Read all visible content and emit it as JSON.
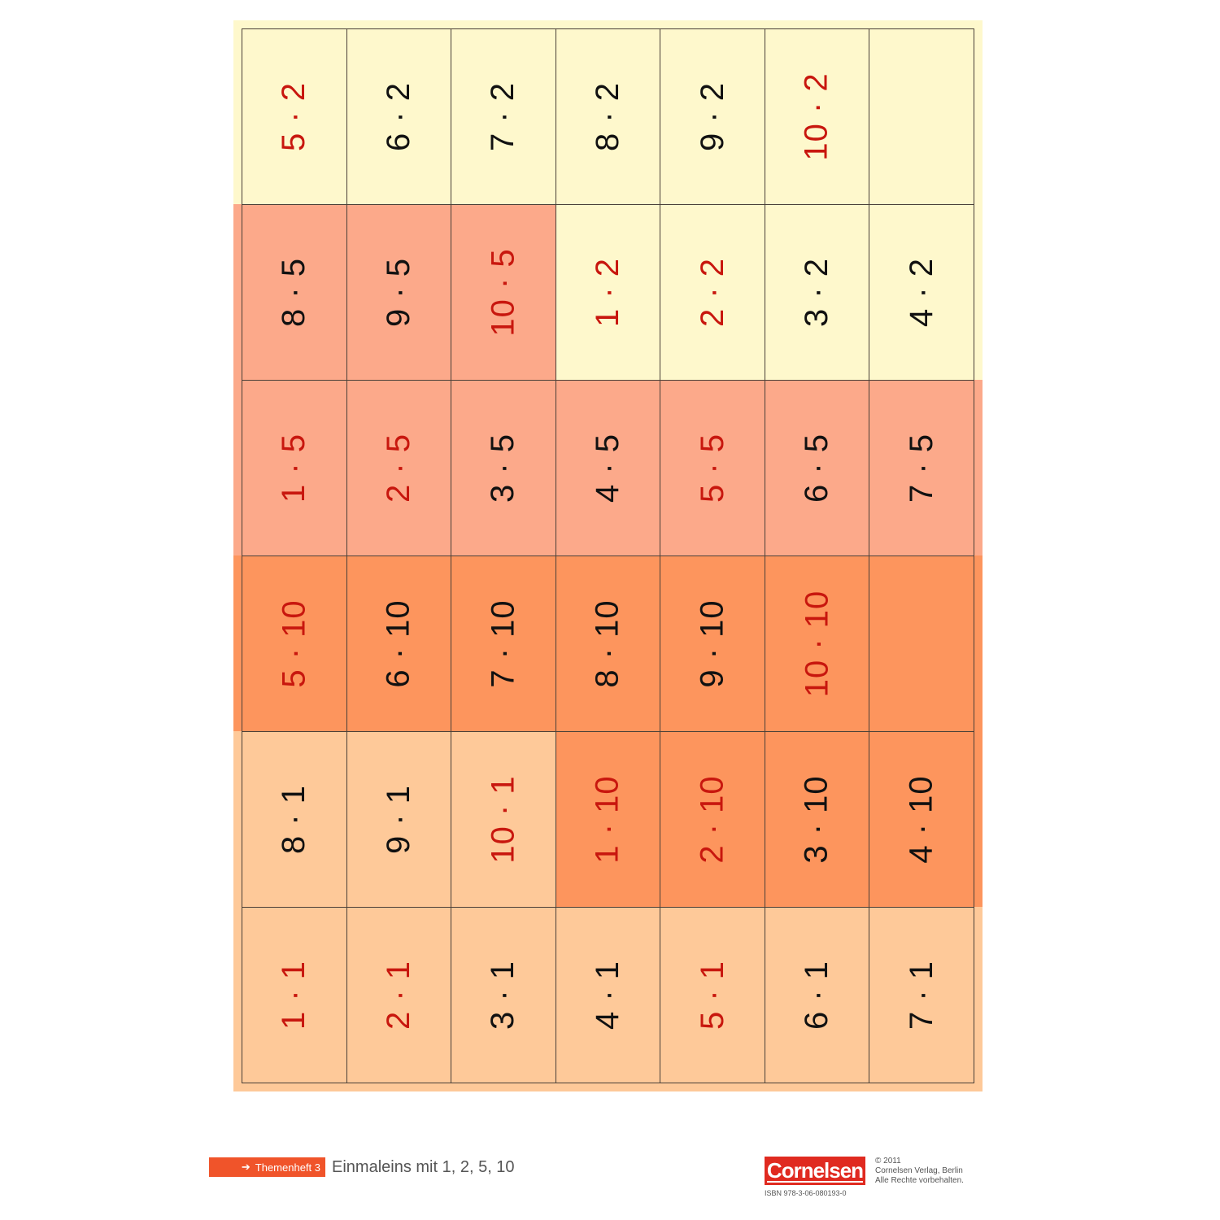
{
  "colors": {
    "yellow": "#fef8cc",
    "salmon": "#fca98a",
    "orange": "#fd955d",
    "peach": "#fec999",
    "red_text": "#c8170e",
    "black_text": "#111111",
    "tag_bg": "#f0542a",
    "logo_bg": "#e02a20"
  },
  "grid": {
    "rows": [
      {
        "cells": [
          {
            "label": "5 · 2",
            "color": "red",
            "bg": "yellow"
          },
          {
            "label": "6 · 2",
            "color": "black",
            "bg": "yellow"
          },
          {
            "label": "7 · 2",
            "color": "black",
            "bg": "yellow"
          },
          {
            "label": "8 · 2",
            "color": "black",
            "bg": "yellow"
          },
          {
            "label": "9 · 2",
            "color": "black",
            "bg": "yellow"
          },
          {
            "label": "10 · 2",
            "color": "red",
            "bg": "yellow"
          },
          {
            "label": "",
            "color": "black",
            "bg": "yellow"
          }
        ]
      },
      {
        "cells": [
          {
            "label": "8 · 5",
            "color": "black",
            "bg": "salmon"
          },
          {
            "label": "9 · 5",
            "color": "black",
            "bg": "salmon"
          },
          {
            "label": "10 · 5",
            "color": "red",
            "bg": "salmon"
          },
          {
            "label": "1 · 2",
            "color": "red",
            "bg": "yellow"
          },
          {
            "label": "2 · 2",
            "color": "red",
            "bg": "yellow"
          },
          {
            "label": "3 · 2",
            "color": "black",
            "bg": "yellow"
          },
          {
            "label": "4 · 2",
            "color": "black",
            "bg": "yellow"
          }
        ]
      },
      {
        "cells": [
          {
            "label": "1 · 5",
            "color": "red",
            "bg": "salmon"
          },
          {
            "label": "2 · 5",
            "color": "red",
            "bg": "salmon"
          },
          {
            "label": "3 · 5",
            "color": "black",
            "bg": "salmon"
          },
          {
            "label": "4 · 5",
            "color": "black",
            "bg": "salmon"
          },
          {
            "label": "5 · 5",
            "color": "red",
            "bg": "salmon"
          },
          {
            "label": "6 · 5",
            "color": "black",
            "bg": "salmon"
          },
          {
            "label": "7 · 5",
            "color": "black",
            "bg": "salmon"
          }
        ]
      },
      {
        "cells": [
          {
            "label": "5 · 10",
            "color": "red",
            "bg": "orange"
          },
          {
            "label": "6 · 10",
            "color": "black",
            "bg": "orange"
          },
          {
            "label": "7 · 10",
            "color": "black",
            "bg": "orange"
          },
          {
            "label": "8 · 10",
            "color": "black",
            "bg": "orange"
          },
          {
            "label": "9 · 10",
            "color": "black",
            "bg": "orange"
          },
          {
            "label": "10 · 10",
            "color": "red",
            "bg": "orange"
          },
          {
            "label": "",
            "color": "black",
            "bg": "orange"
          }
        ]
      },
      {
        "cells": [
          {
            "label": "8 · 1",
            "color": "black",
            "bg": "peach"
          },
          {
            "label": "9 · 1",
            "color": "black",
            "bg": "peach"
          },
          {
            "label": "10 · 1",
            "color": "red",
            "bg": "peach"
          },
          {
            "label": "1 · 10",
            "color": "red",
            "bg": "orange"
          },
          {
            "label": "2 · 10",
            "color": "red",
            "bg": "orange"
          },
          {
            "label": "3 · 10",
            "color": "black",
            "bg": "orange"
          },
          {
            "label": "4 · 10",
            "color": "black",
            "bg": "orange"
          }
        ]
      },
      {
        "cells": [
          {
            "label": "1 · 1",
            "color": "red",
            "bg": "peach"
          },
          {
            "label": "2 · 1",
            "color": "red",
            "bg": "peach"
          },
          {
            "label": "3 · 1",
            "color": "black",
            "bg": "peach"
          },
          {
            "label": "4 · 1",
            "color": "black",
            "bg": "peach"
          },
          {
            "label": "5 · 1",
            "color": "red",
            "bg": "peach"
          },
          {
            "label": "6 · 1",
            "color": "black",
            "bg": "peach"
          },
          {
            "label": "7 · 1",
            "color": "black",
            "bg": "peach"
          }
        ]
      }
    ]
  },
  "footer": {
    "tag_arrow": "➔",
    "tag_label": "Themenheft 3",
    "title": "Einmaleins mit 1, 2, 5, 10",
    "logo": "Cornelsen",
    "isbn": "ISBN  978-3-06-080193-0",
    "copyright_year": "© 2011",
    "copyright_line1": "Cornelsen Verlag, Berlin",
    "copyright_line2": "Alle Rechte vorbehalten."
  }
}
